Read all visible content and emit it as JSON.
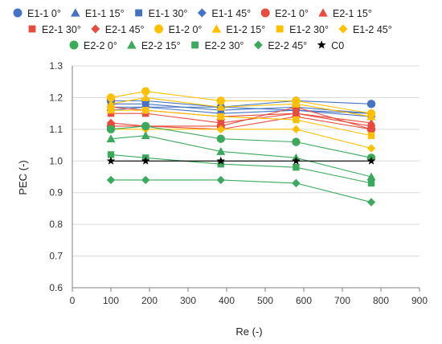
{
  "chart_data": {
    "type": "line",
    "title": "",
    "xlabel": "Re (-)",
    "ylabel": "PEC (-)",
    "xlim": [
      0,
      900
    ],
    "ylim": [
      0.6,
      1.3
    ],
    "xticks": [
      0,
      100,
      200,
      300,
      400,
      500,
      600,
      700,
      800,
      900
    ],
    "yticks": [
      0.6,
      0.7,
      0.8,
      0.9,
      1.0,
      1.1,
      1.2,
      1.3
    ],
    "ytick_labels": [
      "0.6",
      "0.7",
      "0.8",
      "0.9",
      "1.0",
      "1.1",
      "1.2",
      "1.3"
    ],
    "grid": "horizontal",
    "legend_position": "top",
    "x": [
      100,
      190,
      385,
      580,
      775
    ],
    "series": [
      {
        "name": "E1-1 0°",
        "marker": "circle",
        "color": "#4472C4",
        "values": [
          1.19,
          1.19,
          1.17,
          1.19,
          1.18
        ]
      },
      {
        "name": "E1-1 15°",
        "marker": "triangle",
        "color": "#4472C4",
        "values": [
          1.18,
          1.18,
          1.16,
          1.17,
          1.15
        ]
      },
      {
        "name": "E1-1 30°",
        "marker": "square",
        "color": "#4472C4",
        "values": [
          1.17,
          1.17,
          1.15,
          1.16,
          1.14
        ]
      },
      {
        "name": "E1-1 45°",
        "marker": "diamond",
        "color": "#4472C4",
        "values": [
          1.16,
          1.17,
          1.17,
          1.16,
          1.15
        ]
      },
      {
        "name": "E2-1 0°",
        "marker": "circle",
        "color": "#E84C3D",
        "values": [
          1.11,
          1.11,
          1.11,
          1.17,
          1.1
        ]
      },
      {
        "name": "E2-1 15°",
        "marker": "triangle",
        "color": "#E84C3D",
        "values": [
          1.17,
          1.16,
          1.14,
          1.15,
          1.12
        ]
      },
      {
        "name": "E2-1 30°",
        "marker": "square",
        "color": "#E84C3D",
        "values": [
          1.15,
          1.15,
          1.12,
          1.15,
          1.11
        ]
      },
      {
        "name": "E2-1 45°",
        "marker": "diamond",
        "color": "#E84C3D",
        "values": [
          1.12,
          1.11,
          1.1,
          1.14,
          1.1
        ]
      },
      {
        "name": "E1-2 0°",
        "marker": "circle",
        "color": "#FFC000",
        "values": [
          1.2,
          1.22,
          1.19,
          1.19,
          1.15
        ]
      },
      {
        "name": "E1-2 15°",
        "marker": "triangle",
        "color": "#FFC000",
        "values": [
          1.18,
          1.2,
          1.17,
          1.18,
          1.14
        ]
      },
      {
        "name": "E1-2 30°",
        "marker": "square",
        "color": "#FFC000",
        "values": [
          1.16,
          1.16,
          1.14,
          1.13,
          1.08
        ]
      },
      {
        "name": "E1-2 45°",
        "marker": "diamond",
        "color": "#FFC000",
        "values": [
          1.1,
          1.1,
          1.1,
          1.1,
          1.04
        ]
      },
      {
        "name": "E2-2 0°",
        "marker": "circle",
        "color": "#3BAA5C",
        "values": [
          1.1,
          1.11,
          1.07,
          1.06,
          1.01
        ]
      },
      {
        "name": "E2-2 15°",
        "marker": "triangle",
        "color": "#3BAA5C",
        "values": [
          1.07,
          1.08,
          1.03,
          1.01,
          0.95
        ]
      },
      {
        "name": "E2-2 30°",
        "marker": "square",
        "color": "#3BAA5C",
        "values": [
          1.02,
          1.01,
          0.99,
          0.98,
          0.93
        ]
      },
      {
        "name": "E2-2 45°",
        "marker": "diamond",
        "color": "#3BAA5C",
        "values": [
          0.94,
          0.94,
          0.94,
          0.93,
          0.87
        ]
      },
      {
        "name": "C0",
        "marker": "star",
        "color": "#000000",
        "values": [
          1.0,
          1.0,
          1.0,
          1.0,
          1.0
        ]
      }
    ]
  }
}
